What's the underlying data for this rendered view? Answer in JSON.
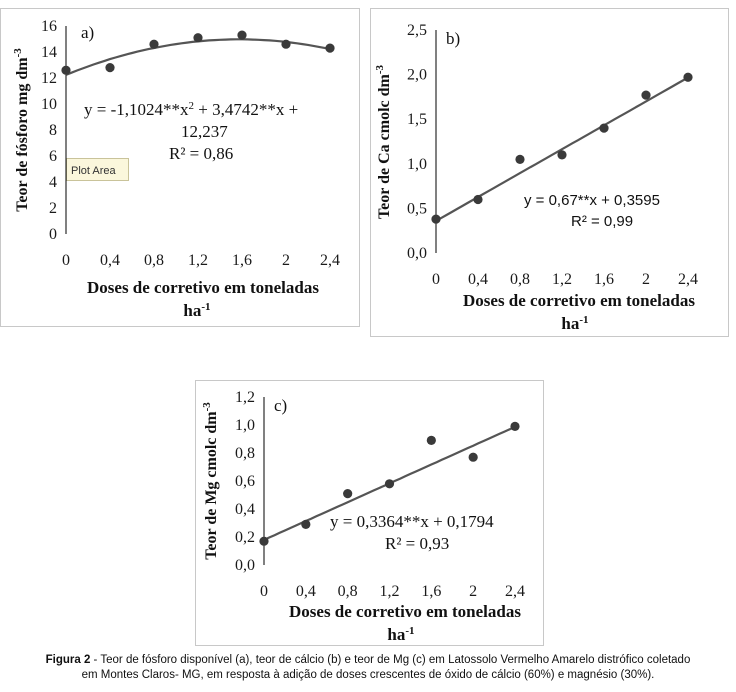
{
  "chart_data": [
    {
      "type": "scatter",
      "panel": "a)",
      "title": "",
      "x": [
        0,
        0.4,
        0.8,
        1.2,
        1.6,
        2,
        2.4
      ],
      "y": [
        12.6,
        12.8,
        14.6,
        15.1,
        15.3,
        14.6,
        14.3
      ],
      "xlim": [
        0,
        2.4
      ],
      "ylim": [
        0,
        16
      ],
      "xticks": [
        "0",
        "0,4",
        "0,8",
        "1,2",
        "1,6",
        "2",
        "2,4"
      ],
      "yticks": [
        "0",
        "2",
        "4",
        "6",
        "8",
        "10",
        "12",
        "14",
        "16"
      ],
      "xlabel_line1": "Doses de corretivo em toneladas",
      "xlabel_line2": "ha",
      "xlabel_sup": "-1",
      "ylabel": "Teor de fósforo mg dm",
      "ylabel_sup": "-3",
      "trendline": {
        "kind": "quadratic",
        "a": -1.1024,
        "b": 3.4742,
        "c": 12.237
      },
      "equation_part1": "y = -1,1024**x",
      "equation_sup": "2",
      "equation_part2": " + 3,4742**x +",
      "equation_line2": "12,237",
      "r2_label": "R² = 0,86",
      "tooltip": "Plot Area"
    },
    {
      "type": "scatter",
      "panel": "b)",
      "title": "",
      "x": [
        0,
        0.4,
        0.8,
        1.2,
        1.6,
        2,
        2.4
      ],
      "y": [
        0.38,
        0.6,
        1.05,
        1.1,
        1.4,
        1.77,
        1.97
      ],
      "xlim": [
        0,
        2.4
      ],
      "ylim": [
        0,
        2.5
      ],
      "xticks": [
        "0",
        "0,4",
        "0,8",
        "1,2",
        "1,6",
        "2",
        "2,4"
      ],
      "yticks": [
        "0,0",
        "0,5",
        "1,0",
        "1,5",
        "2,0",
        "2,5"
      ],
      "xlabel_line1": "Doses de corretivo em toneladas",
      "xlabel_line2": "ha",
      "xlabel_sup": "-1",
      "ylabel": "Teor de Ca cmolc dm",
      "ylabel_sup": "-3",
      "trendline": {
        "kind": "linear",
        "a": 0.67,
        "b": 0.3595
      },
      "equation": "y = 0,67**x + 0,3595",
      "r2_label": "R² = 0,99"
    },
    {
      "type": "scatter",
      "panel": "c)",
      "title": "",
      "x": [
        0,
        0.4,
        0.8,
        1.2,
        1.6,
        2,
        2.4
      ],
      "y": [
        0.17,
        0.29,
        0.51,
        0.58,
        0.89,
        0.77,
        0.99
      ],
      "xlim": [
        0,
        2.4
      ],
      "ylim": [
        0,
        1.2
      ],
      "xticks": [
        "0",
        "0,4",
        "0,8",
        "1,2",
        "1,6",
        "2",
        "2,4"
      ],
      "yticks": [
        "0,0",
        "0,2",
        "0,4",
        "0,6",
        "0,8",
        "1,0",
        "1,2"
      ],
      "xlabel_line1": "Doses de corretivo em toneladas",
      "xlabel_line2": "ha",
      "xlabel_sup": "-1",
      "ylabel": "Teor de Mg cmolc dm",
      "ylabel_sup": "-3",
      "trendline": {
        "kind": "linear",
        "a": 0.3364,
        "b": 0.1794
      },
      "equation": "y = 0,3364**x + 0,1794",
      "r2_label": "R² = 0,93"
    }
  ],
  "caption": {
    "label": "Figura 2",
    "text": " - Teor de fósforo disponível (a), teor de cálcio (b) e teor de Mg (c) em Latossolo Vermelho Amarelo distrófico coletado",
    "line2": "em Montes Claros- MG, em resposta à adição de doses crescentes de óxido de cálcio (60%) e magnésio (30%)."
  }
}
